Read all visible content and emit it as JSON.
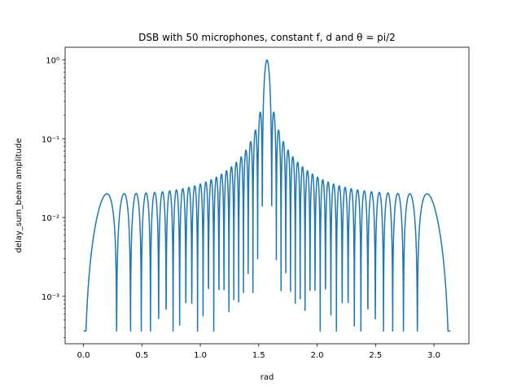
{
  "chart_data": {
    "type": "line",
    "title": "DSB with 50 microphones, constant f, d and θ = pi/2",
    "xlabel": "rad",
    "ylabel": "delay_sum_beam amplitude",
    "xlim": [
      -0.157,
      3.299
    ],
    "ylim": [
      0.00025,
      1.45
    ],
    "yscale": "log",
    "grid": false,
    "legend": "none",
    "x_ticks": [
      0.0,
      0.5,
      1.0,
      1.5,
      2.0,
      2.5,
      3.0
    ],
    "x_tick_labels": [
      "0.0",
      "0.5",
      "1.0",
      "1.5",
      "2.0",
      "2.5",
      "3.0"
    ],
    "y_ticks": [
      0.001,
      0.01,
      0.1,
      1
    ],
    "y_tick_labels": [
      "10⁻³",
      "10⁻²",
      "10⁻¹",
      "10⁰"
    ],
    "series": [
      {
        "color": "#1f77b4",
        "formula": "|sin(N*pi*cos(x)/2) / (N*sin(pi*cos(x)/2))|",
        "N": 50,
        "x_range": [
          0,
          3.1416
        ]
      }
    ]
  }
}
